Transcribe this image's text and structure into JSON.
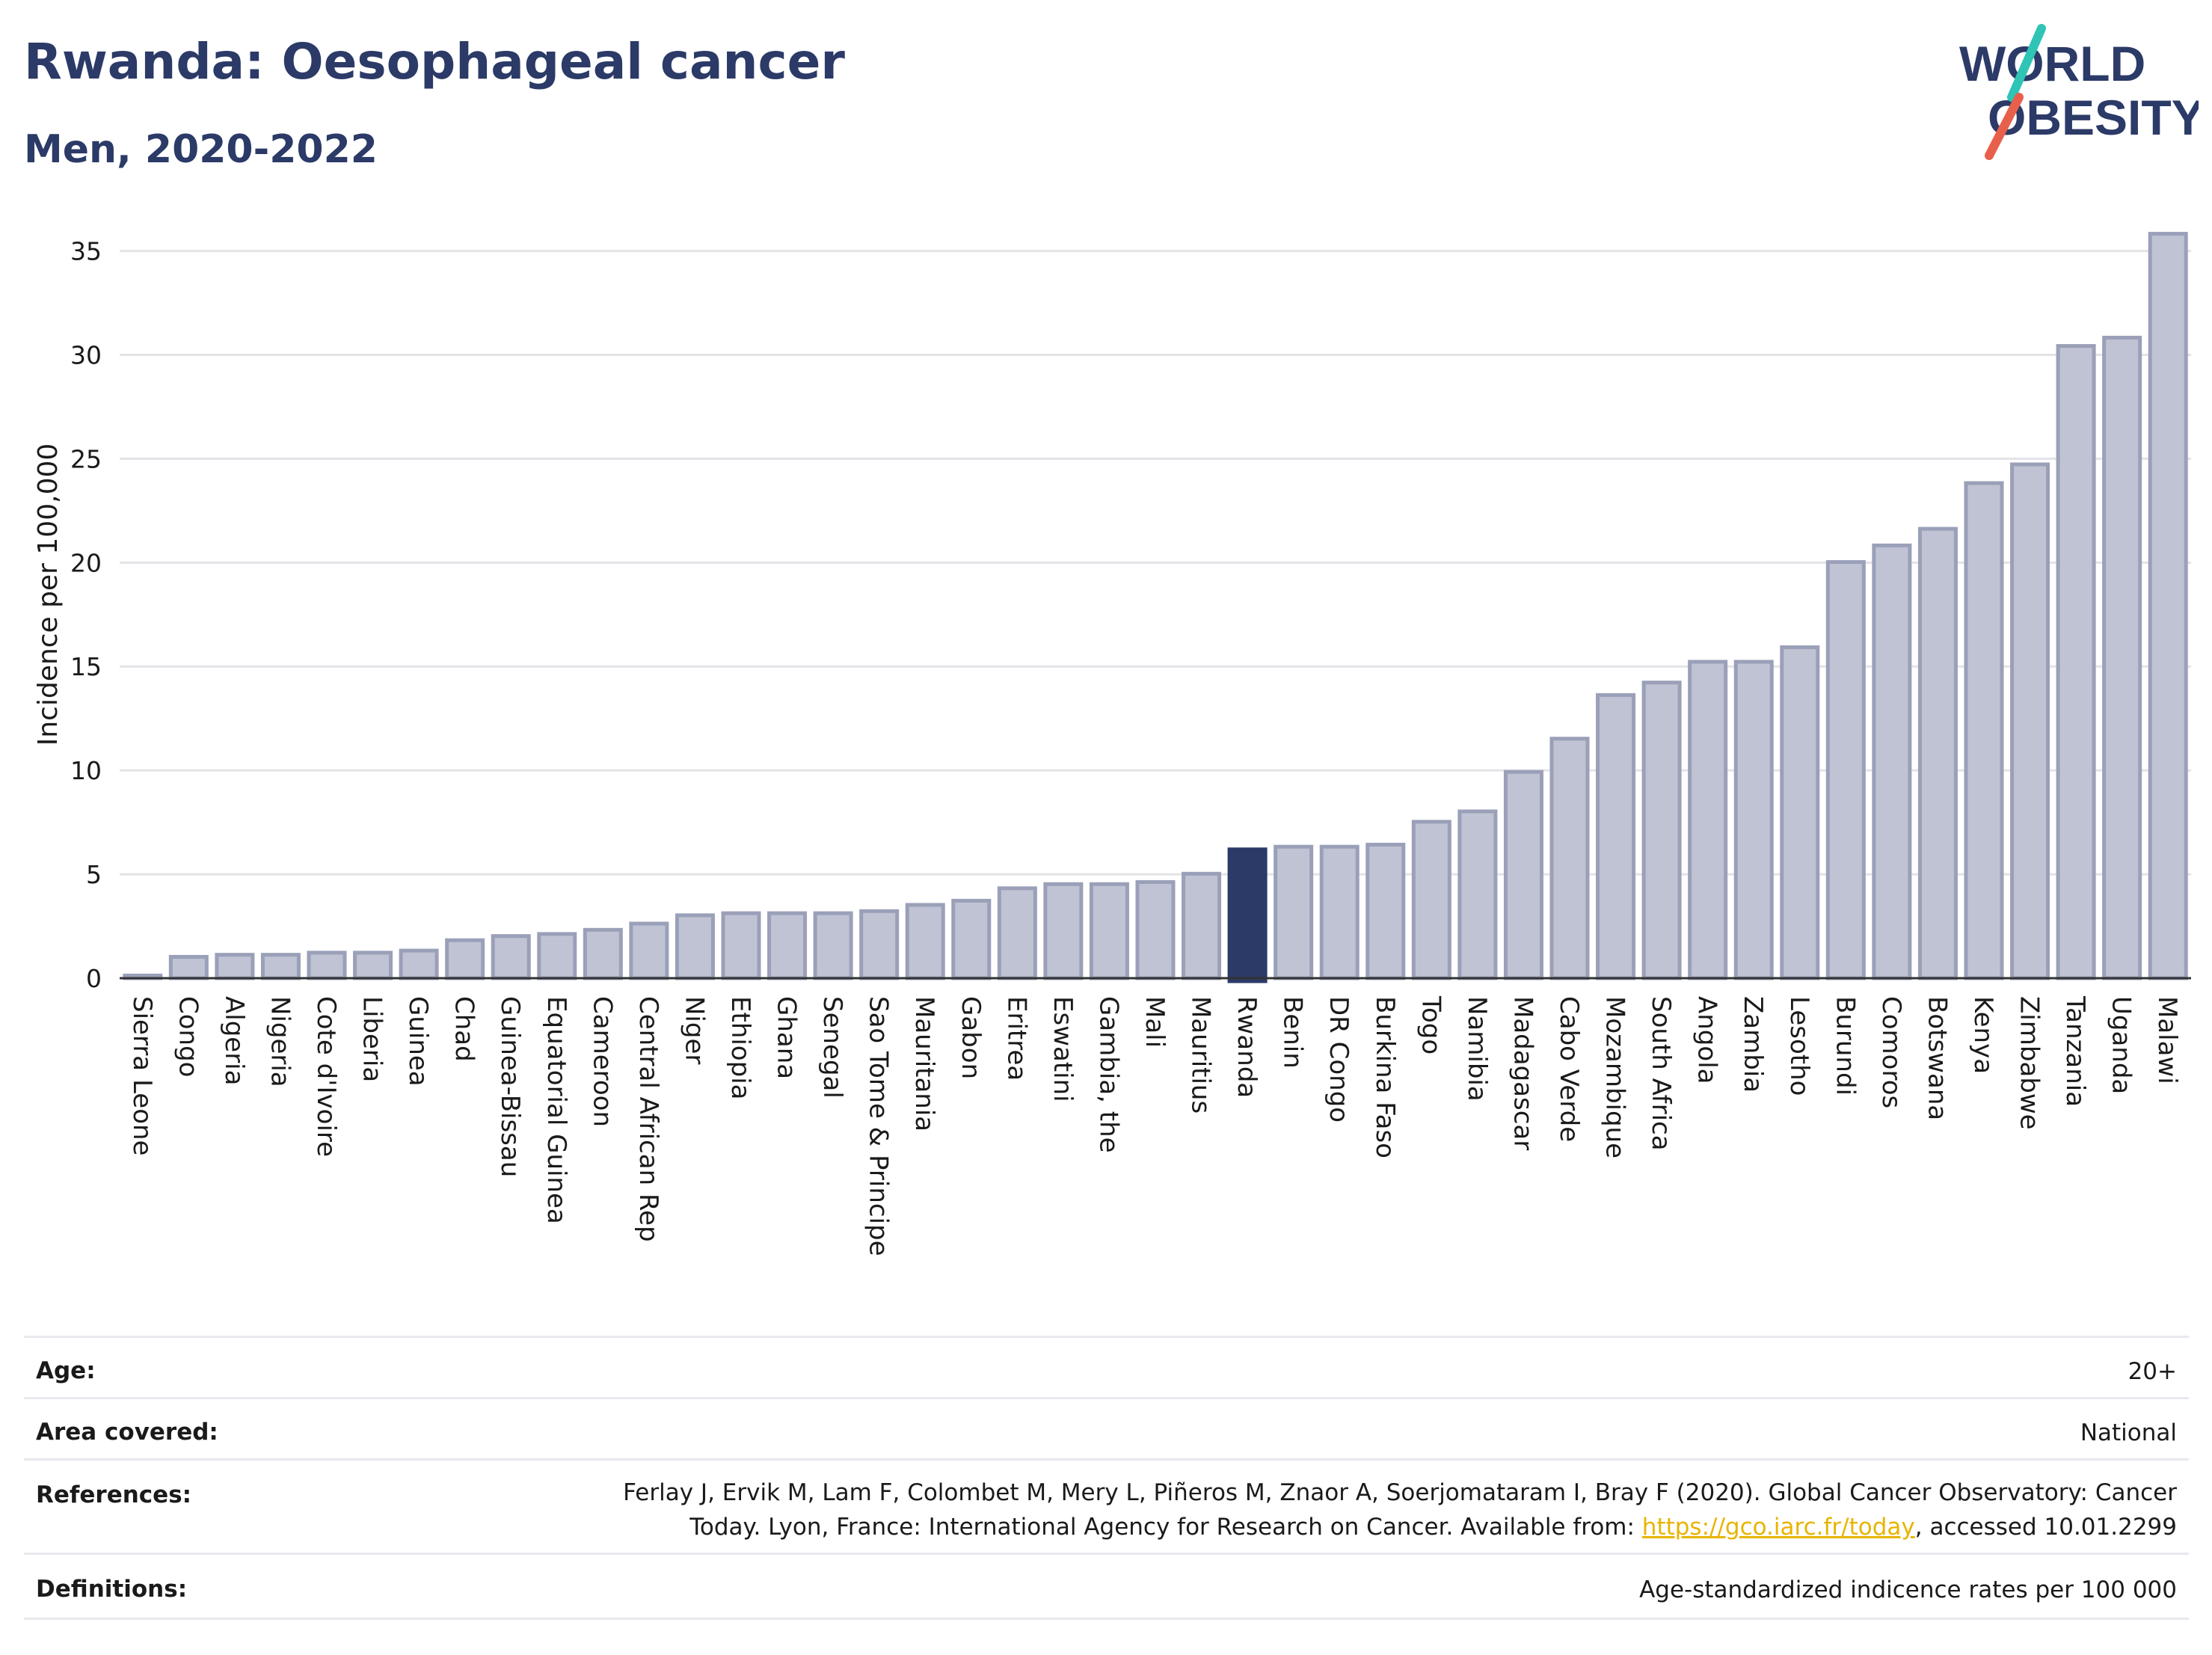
{
  "header": {
    "title": "Rwanda: Oesophageal cancer",
    "subtitle": "Men, 2020-2022"
  },
  "logo": {
    "line1": "WORLD",
    "line2": "OBESITY",
    "accent_colors": [
      "#2ec4b6",
      "#e8604c"
    ]
  },
  "colors": {
    "bar": "#bfc3d3",
    "bar_stroke": "#9aa0b8",
    "highlight": "#2b3a67",
    "title": "#2b3a67"
  },
  "chart_data": {
    "type": "bar",
    "title": "",
    "ylabel": "Incidence per 100,000",
    "xlabel": "",
    "ylim": [
      0,
      37
    ],
    "yticks": [
      0,
      5,
      10,
      15,
      20,
      25,
      30,
      35
    ],
    "grid": true,
    "highlight": "Rwanda",
    "categories": [
      "Sierra Leone",
      "Congo",
      "Algeria",
      "Nigeria",
      "Cote d'Ivoire",
      "Liberia",
      "Guinea",
      "Chad",
      "Guinea-Bissau",
      "Equatorial Guinea",
      "Cameroon",
      "Central African Rep",
      "Niger",
      "Ethiopia",
      "Ghana",
      "Senegal",
      "Sao Tome & Principe",
      "Mauritania",
      "Gabon",
      "Eritrea",
      "Eswatini",
      "Gambia, the",
      "Mali",
      "Mauritius",
      "Rwanda",
      "Benin",
      "DR Congo",
      "Burkina Faso",
      "Togo",
      "Namibia",
      "Madagascar",
      "Cabo Verde",
      "Mozambique",
      "South Africa",
      "Angola",
      "Zambia",
      "Lesotho",
      "Burundi",
      "Comoros",
      "Botswana",
      "Kenya",
      "Zimbabwe",
      "Tanzania",
      "Uganda",
      "Malawi"
    ],
    "values": [
      0.2,
      1.1,
      1.2,
      1.2,
      1.3,
      1.3,
      1.4,
      1.9,
      2.1,
      2.2,
      2.4,
      2.7,
      3.1,
      3.2,
      3.2,
      3.2,
      3.3,
      3.6,
      3.8,
      4.4,
      4.6,
      4.6,
      4.7,
      5.1,
      6.2,
      6.4,
      6.4,
      6.5,
      7.6,
      8.1,
      10.0,
      11.6,
      13.7,
      14.3,
      15.3,
      15.3,
      16.0,
      20.1,
      20.9,
      21.7,
      23.9,
      24.8,
      30.5,
      30.9,
      35.9
    ]
  },
  "info": {
    "age_label": "Age:",
    "age_value": "20+",
    "area_label": "Area covered:",
    "area_value": "National",
    "references_label": "References:",
    "references_line1": "Ferlay J, Ervik M, Lam F, Colombet M, Mery L, Piñeros M, Znaor A, Soerjomataram I, Bray F (2020). Global Cancer Observatory: Cancer",
    "references_line2_pre": "Today. Lyon, France: International Agency for Research on Cancer. Available from: ",
    "references_link": "https://gco.iarc.fr/today",
    "references_line2_post": ", accessed 10.01.2299",
    "definitions_label": "Definitions:",
    "definitions_value": "Age-standardized indicence rates per 100 000"
  }
}
